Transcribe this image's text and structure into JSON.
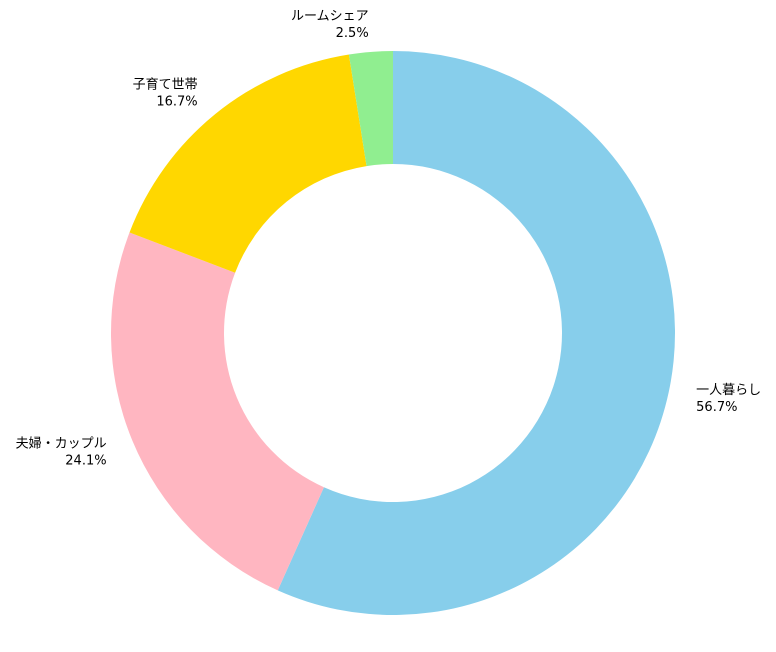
{
  "chart_data": {
    "type": "pie",
    "variant": "donut",
    "title": "",
    "start_angle_deg": 90,
    "direction": "clockwise",
    "legend": "none",
    "slices": [
      {
        "label": "一人暮らし",
        "value": 56.7,
        "pct_label": "56.7%",
        "color": "#87CEEB"
      },
      {
        "label": "夫婦・カップル",
        "value": 24.1,
        "pct_label": "24.1%",
        "color": "#FFB6C1"
      },
      {
        "label": "子育て世帯",
        "value": 16.7,
        "pct_label": "16.7%",
        "color": "#FFD700"
      },
      {
        "label": "ルームシェア",
        "value": 2.5,
        "pct_label": "2.5%",
        "color": "#90EE90"
      }
    ]
  }
}
